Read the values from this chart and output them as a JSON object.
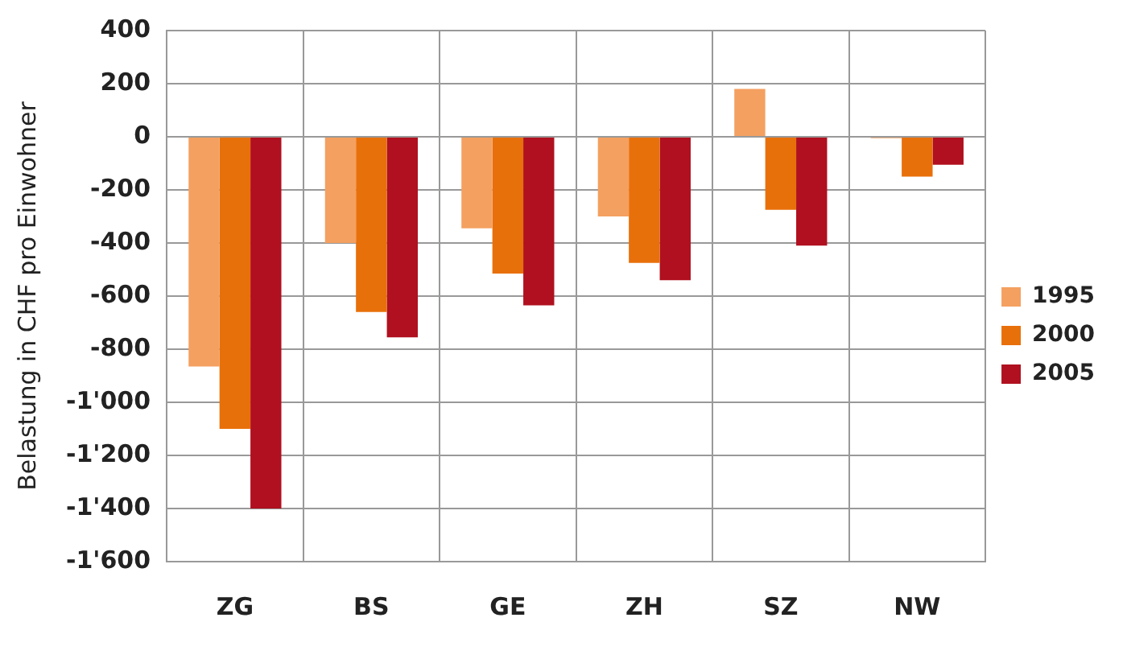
{
  "chart_data": {
    "type": "bar",
    "ylabel": "Belastung in CHF pro Einwohner",
    "categories": [
      "ZG",
      "BS",
      "GE",
      "ZH",
      "SZ",
      "NW"
    ],
    "series": [
      {
        "name": "1995",
        "color": "#f4a060",
        "values": [
          -865,
          -400,
          -345,
          -300,
          180,
          -5
        ]
      },
      {
        "name": "2000",
        "color": "#e8700a",
        "values": [
          -1100,
          -660,
          -515,
          -475,
          -275,
          -150
        ]
      },
      {
        "name": "2005",
        "color": "#b0101f",
        "values": [
          -1400,
          -755,
          -635,
          -540,
          -410,
          -105
        ]
      }
    ],
    "ylim": [
      -1600,
      400
    ],
    "yticks": [
      400,
      200,
      0,
      -200,
      -400,
      -600,
      -800,
      {
        "value": -1000,
        "label": "-1'000"
      },
      {
        "value": -1200,
        "label": "-1'200"
      },
      {
        "value": -1400,
        "label": "-1'400"
      },
      {
        "value": -1600,
        "label": "-1'600"
      }
    ],
    "grid": true,
    "legend": "right"
  }
}
